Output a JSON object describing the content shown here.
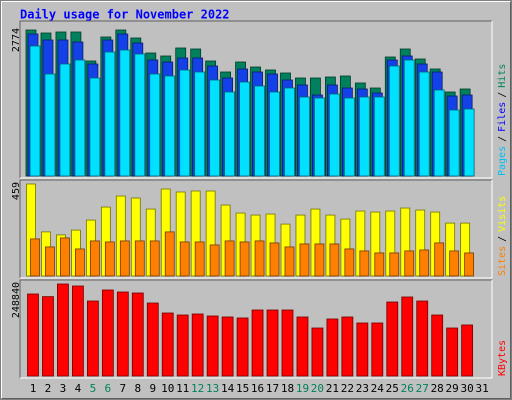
{
  "chart_data": [
    {
      "type": "bar",
      "title": "Daily usage for November 2022",
      "categories": [
        "1",
        "2",
        "3",
        "4",
        "5",
        "6",
        "7",
        "8",
        "9",
        "10",
        "11",
        "12",
        "13",
        "14",
        "15",
        "16",
        "17",
        "18",
        "19",
        "20",
        "21",
        "22",
        "23",
        "24",
        "25",
        "26",
        "27",
        "28",
        "29",
        "30",
        "31"
      ],
      "category_colors": [
        "#000000",
        "#000000",
        "#000000",
        "#000000",
        "#00805c",
        "#00805c",
        "#000000",
        "#000000",
        "#000000",
        "#000000",
        "#000000",
        "#00805c",
        "#00805c",
        "#000000",
        "#000000",
        "#000000",
        "#000000",
        "#000000",
        "#00805c",
        "#00805c",
        "#000000",
        "#000000",
        "#000000",
        "#000000",
        "#000000",
        "#00805c",
        "#00805c",
        "#000000",
        "#000000",
        "#000000",
        "#000000"
      ],
      "ylim": [
        0,
        2774
      ],
      "yticks": [
        2774
      ],
      "legend_separator": "/",
      "series": [
        {
          "name": "Hits",
          "color": "#00805c",
          "label_color": "#00805c",
          "values": [
            2774,
            2717,
            2736,
            2736,
            2185,
            2641,
            2774,
            2622,
            2337,
            2280,
            2432,
            2413,
            2185,
            1976,
            2166,
            2071,
            2014,
            1957,
            1862,
            1862,
            1881,
            1900,
            1767,
            1672,
            2261,
            2413,
            2223,
            2033,
            1596,
            1653,
            null
          ]
        },
        {
          "name": "Files",
          "color": "#1440e8",
          "label_color": "#0000ff",
          "values": [
            2698,
            2584,
            2584,
            2546,
            2128,
            2584,
            2698,
            2527,
            2204,
            2166,
            2242,
            2242,
            2090,
            1862,
            2033,
            1976,
            1938,
            1824,
            1729,
            1539,
            1729,
            1672,
            1653,
            1577,
            2204,
            2280,
            2128,
            1976,
            1520,
            1539,
            null
          ]
        },
        {
          "name": "Pages",
          "color": "#00e0ff",
          "label_color": "#00c0f0",
          "values": [
            2470,
            1938,
            2128,
            2204,
            1862,
            2356,
            2394,
            2318,
            1938,
            1900,
            2014,
            1976,
            1824,
            1596,
            1786,
            1710,
            1596,
            1672,
            1501,
            1482,
            1558,
            1482,
            1501,
            1501,
            2090,
            2204,
            1976,
            1634,
            1254,
            1273,
            null
          ]
        }
      ]
    },
    {
      "type": "bar",
      "ylim": [
        0,
        459
      ],
      "yticks": [
        459
      ],
      "legend_separator": "/",
      "series": [
        {
          "name": "Visits",
          "color": "#ffff00",
          "label_color": "#ffff00",
          "values": [
            459,
            220,
            205,
            229,
            279,
            344,
            399,
            389,
            334,
            434,
            419,
            424,
            424,
            354,
            314,
            304,
            309,
            259,
            304,
            334,
            304,
            284,
            324,
            319,
            324,
            339,
            329,
            319,
            264,
            264,
            null
          ]
        },
        {
          "name": "Sites",
          "color": "#ff8000",
          "label_color": "#ff8000",
          "values": [
            185,
            145,
            190,
            135,
            175,
            170,
            175,
            175,
            175,
            220,
            170,
            170,
            155,
            175,
            170,
            175,
            165,
            145,
            160,
            160,
            160,
            135,
            125,
            115,
            115,
            125,
            130,
            165,
            125,
            115,
            null
          ]
        }
      ]
    },
    {
      "type": "bar",
      "ylim": [
        0,
        248840
      ],
      "yticks": [
        248840
      ],
      "series": [
        {
          "name": "KBytes",
          "color": "#ff0000",
          "label_color": "#ff0000",
          "values": [
            221800,
            214700,
            248840,
            243400,
            202800,
            232600,
            227200,
            224500,
            197400,
            170400,
            165000,
            167700,
            162300,
            159600,
            156900,
            178500,
            178500,
            178500,
            159600,
            129800,
            154200,
            159600,
            143400,
            143400,
            200100,
            213700,
            202800,
            165000,
            129800,
            138000,
            null
          ]
        }
      ]
    }
  ]
}
